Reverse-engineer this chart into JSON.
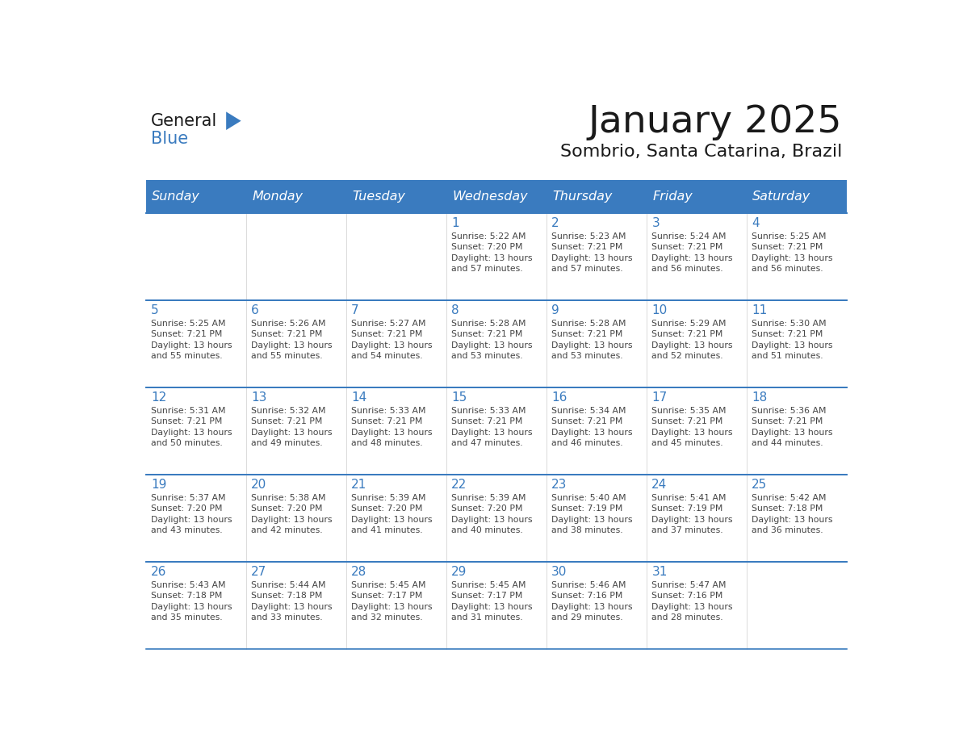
{
  "title": "January 2025",
  "subtitle": "Sombrio, Santa Catarina, Brazil",
  "days_of_week": [
    "Sunday",
    "Monday",
    "Tuesday",
    "Wednesday",
    "Thursday",
    "Friday",
    "Saturday"
  ],
  "header_bg": "#3a7bbf",
  "header_text": "#ffffff",
  "line_color": "#3a7bbf",
  "day_num_color": "#3a7bbf",
  "cell_text_color": "#444444",
  "title_color": "#1a1a1a",
  "subtitle_color": "#1a1a1a",
  "calendar": [
    [
      {
        "day": null,
        "text": ""
      },
      {
        "day": null,
        "text": ""
      },
      {
        "day": null,
        "text": ""
      },
      {
        "day": 1,
        "text": "Sunrise: 5:22 AM\nSunset: 7:20 PM\nDaylight: 13 hours\nand 57 minutes."
      },
      {
        "day": 2,
        "text": "Sunrise: 5:23 AM\nSunset: 7:21 PM\nDaylight: 13 hours\nand 57 minutes."
      },
      {
        "day": 3,
        "text": "Sunrise: 5:24 AM\nSunset: 7:21 PM\nDaylight: 13 hours\nand 56 minutes."
      },
      {
        "day": 4,
        "text": "Sunrise: 5:25 AM\nSunset: 7:21 PM\nDaylight: 13 hours\nand 56 minutes."
      }
    ],
    [
      {
        "day": 5,
        "text": "Sunrise: 5:25 AM\nSunset: 7:21 PM\nDaylight: 13 hours\nand 55 minutes."
      },
      {
        "day": 6,
        "text": "Sunrise: 5:26 AM\nSunset: 7:21 PM\nDaylight: 13 hours\nand 55 minutes."
      },
      {
        "day": 7,
        "text": "Sunrise: 5:27 AM\nSunset: 7:21 PM\nDaylight: 13 hours\nand 54 minutes."
      },
      {
        "day": 8,
        "text": "Sunrise: 5:28 AM\nSunset: 7:21 PM\nDaylight: 13 hours\nand 53 minutes."
      },
      {
        "day": 9,
        "text": "Sunrise: 5:28 AM\nSunset: 7:21 PM\nDaylight: 13 hours\nand 53 minutes."
      },
      {
        "day": 10,
        "text": "Sunrise: 5:29 AM\nSunset: 7:21 PM\nDaylight: 13 hours\nand 52 minutes."
      },
      {
        "day": 11,
        "text": "Sunrise: 5:30 AM\nSunset: 7:21 PM\nDaylight: 13 hours\nand 51 minutes."
      }
    ],
    [
      {
        "day": 12,
        "text": "Sunrise: 5:31 AM\nSunset: 7:21 PM\nDaylight: 13 hours\nand 50 minutes."
      },
      {
        "day": 13,
        "text": "Sunrise: 5:32 AM\nSunset: 7:21 PM\nDaylight: 13 hours\nand 49 minutes."
      },
      {
        "day": 14,
        "text": "Sunrise: 5:33 AM\nSunset: 7:21 PM\nDaylight: 13 hours\nand 48 minutes."
      },
      {
        "day": 15,
        "text": "Sunrise: 5:33 AM\nSunset: 7:21 PM\nDaylight: 13 hours\nand 47 minutes."
      },
      {
        "day": 16,
        "text": "Sunrise: 5:34 AM\nSunset: 7:21 PM\nDaylight: 13 hours\nand 46 minutes."
      },
      {
        "day": 17,
        "text": "Sunrise: 5:35 AM\nSunset: 7:21 PM\nDaylight: 13 hours\nand 45 minutes."
      },
      {
        "day": 18,
        "text": "Sunrise: 5:36 AM\nSunset: 7:21 PM\nDaylight: 13 hours\nand 44 minutes."
      }
    ],
    [
      {
        "day": 19,
        "text": "Sunrise: 5:37 AM\nSunset: 7:20 PM\nDaylight: 13 hours\nand 43 minutes."
      },
      {
        "day": 20,
        "text": "Sunrise: 5:38 AM\nSunset: 7:20 PM\nDaylight: 13 hours\nand 42 minutes."
      },
      {
        "day": 21,
        "text": "Sunrise: 5:39 AM\nSunset: 7:20 PM\nDaylight: 13 hours\nand 41 minutes."
      },
      {
        "day": 22,
        "text": "Sunrise: 5:39 AM\nSunset: 7:20 PM\nDaylight: 13 hours\nand 40 minutes."
      },
      {
        "day": 23,
        "text": "Sunrise: 5:40 AM\nSunset: 7:19 PM\nDaylight: 13 hours\nand 38 minutes."
      },
      {
        "day": 24,
        "text": "Sunrise: 5:41 AM\nSunset: 7:19 PM\nDaylight: 13 hours\nand 37 minutes."
      },
      {
        "day": 25,
        "text": "Sunrise: 5:42 AM\nSunset: 7:18 PM\nDaylight: 13 hours\nand 36 minutes."
      }
    ],
    [
      {
        "day": 26,
        "text": "Sunrise: 5:43 AM\nSunset: 7:18 PM\nDaylight: 13 hours\nand 35 minutes."
      },
      {
        "day": 27,
        "text": "Sunrise: 5:44 AM\nSunset: 7:18 PM\nDaylight: 13 hours\nand 33 minutes."
      },
      {
        "day": 28,
        "text": "Sunrise: 5:45 AM\nSunset: 7:17 PM\nDaylight: 13 hours\nand 32 minutes."
      },
      {
        "day": 29,
        "text": "Sunrise: 5:45 AM\nSunset: 7:17 PM\nDaylight: 13 hours\nand 31 minutes."
      },
      {
        "day": 30,
        "text": "Sunrise: 5:46 AM\nSunset: 7:16 PM\nDaylight: 13 hours\nand 29 minutes."
      },
      {
        "day": 31,
        "text": "Sunrise: 5:47 AM\nSunset: 7:16 PM\nDaylight: 13 hours\nand 28 minutes."
      },
      {
        "day": null,
        "text": ""
      }
    ]
  ]
}
